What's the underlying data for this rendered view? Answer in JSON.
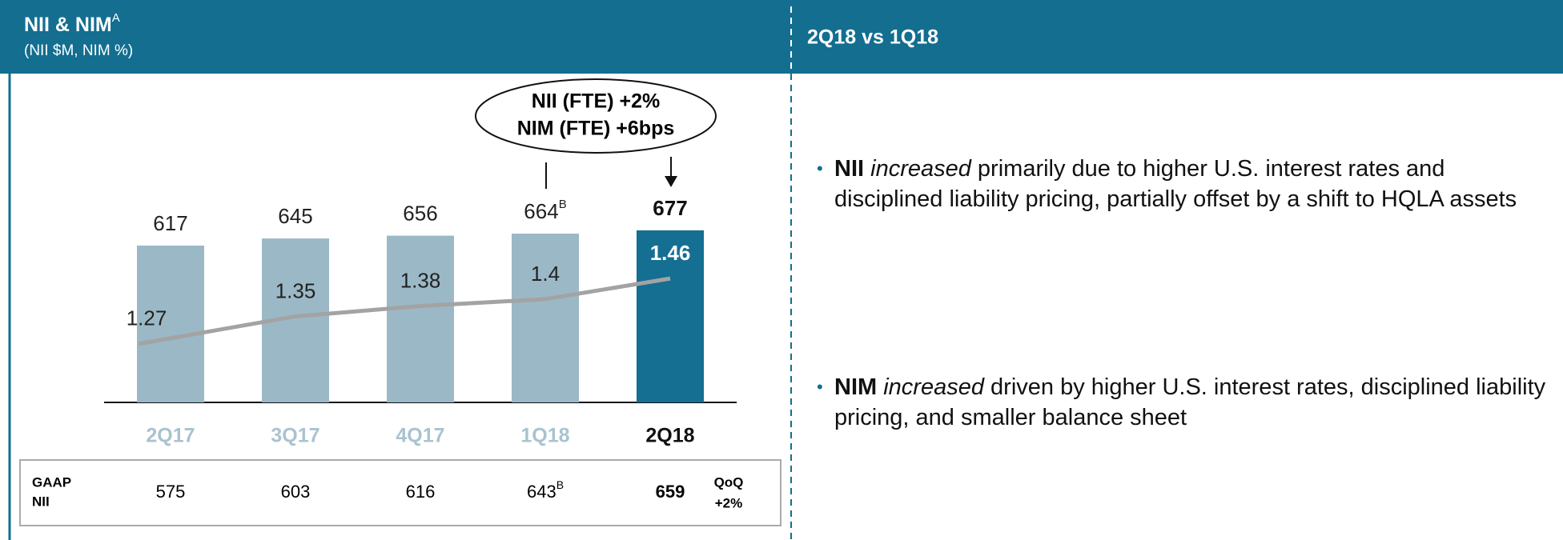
{
  "header": {
    "title": "NII & NIM",
    "title_superscript": "A",
    "subtitle": "(NII $M, NIM %)",
    "right_title": "2Q18 vs 1Q18"
  },
  "chart_data": {
    "type": "bar",
    "categories": [
      "2Q17",
      "3Q17",
      "4Q17",
      "1Q18",
      "2Q18"
    ],
    "series": [
      {
        "name": "NII",
        "values": [
          617,
          645,
          656,
          664,
          677
        ],
        "colors": [
          "#9bb8c6",
          "#9bb8c6",
          "#9bb8c6",
          "#9bb8c6",
          "#146f93"
        ],
        "label_colors": [
          "#222222",
          "#222222",
          "#222222",
          "#222222",
          "#111111"
        ],
        "value_superscripts": [
          null,
          null,
          null,
          "B",
          null
        ]
      },
      {
        "name": "NIM",
        "type": "line",
        "axis": "y2",
        "color": "#a3a3a3",
        "values": [
          1.27,
          1.35,
          1.38,
          1.4,
          1.46
        ],
        "label_colors": [
          "#222222",
          "#222222",
          "#222222",
          "#222222",
          "#ffffff"
        ]
      }
    ],
    "category_colors": [
      "#a9c3cf",
      "#a9c3cf",
      "#a9c3cf",
      "#a9c3cf",
      "#111111"
    ],
    "ylim": [
      0,
      1300
    ],
    "y2lim": [
      1.1,
      2.06
    ],
    "callout": [
      "NII (FTE) +2%",
      "NIM (FTE) +6bps"
    ]
  },
  "table": {
    "label": [
      "GAAP",
      "NII"
    ],
    "values": [
      "575",
      "603",
      "616",
      "643",
      "659"
    ],
    "superscripts": [
      null,
      null,
      null,
      "B",
      null
    ],
    "qoq": [
      "QoQ",
      "+2%"
    ]
  },
  "bullets": [
    {
      "bold": "NII",
      "italic": "increased",
      "text": " primarily due to higher U.S. interest rates and disciplined liability pricing, partially offset by a shift to HQLA assets"
    },
    {
      "bold": "NIM",
      "italic": "increased",
      "text": "  driven by higher U.S. interest rates, disciplined liability pricing, and smaller balance sheet"
    }
  ]
}
